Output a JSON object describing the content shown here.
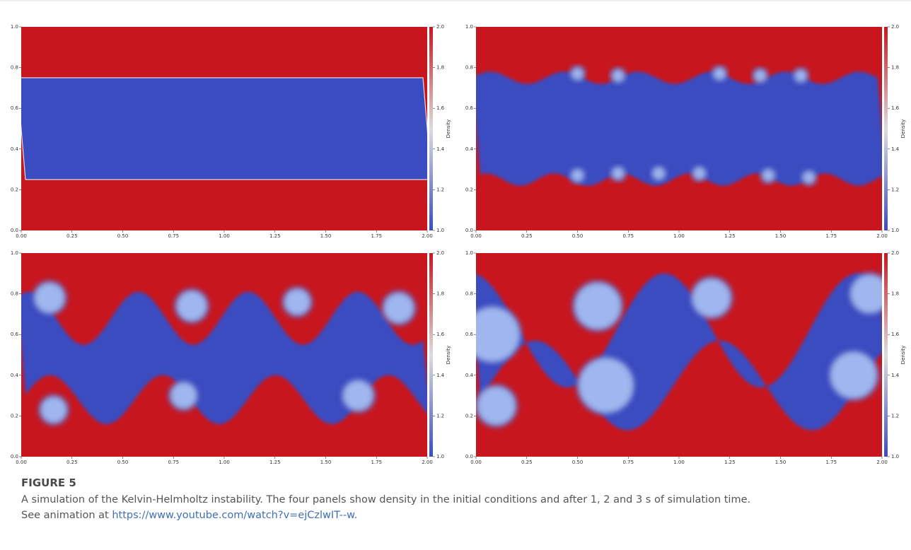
{
  "chart_data": [
    {
      "type": "heatmap",
      "xlim": [
        0,
        2
      ],
      "ylim": [
        0,
        1
      ],
      "xticks": [
        {
          "value": 0,
          "label": "0.00"
        },
        {
          "value": 0.25,
          "label": "0.25"
        },
        {
          "value": 0.5,
          "label": "0.50"
        },
        {
          "value": 0.75,
          "label": "0.75"
        },
        {
          "value": 1,
          "label": "1.00"
        },
        {
          "value": 1.25,
          "label": "1.25"
        },
        {
          "value": 1.5,
          "label": "1.50"
        },
        {
          "value": 1.75,
          "label": "1.75"
        },
        {
          "value": 2,
          "label": "2.00"
        }
      ],
      "yticks": [
        {
          "value": 0,
          "label": "0.0"
        },
        {
          "value": 0.2,
          "label": "0.2"
        },
        {
          "value": 0.4,
          "label": "0.4"
        },
        {
          "value": 0.6,
          "label": "0.6"
        },
        {
          "value": 0.8,
          "label": "0.8"
        },
        {
          "value": 1,
          "label": "1.0"
        }
      ],
      "colorbar": {
        "label": "Density",
        "lim": [
          1,
          2
        ],
        "colors": [
          "#3b4cc0",
          "#dddddd",
          "#c8161e"
        ],
        "ticks": [
          {
            "value": 1,
            "label": "1.0"
          },
          {
            "value": 1.2,
            "label": "1.2"
          },
          {
            "value": 1.4,
            "label": "1.4"
          },
          {
            "value": 1.6,
            "label": "1.6"
          },
          {
            "value": 1.8,
            "label": "1.8"
          },
          {
            "value": 2,
            "label": "2.0"
          }
        ]
      }
    },
    {
      "type": "heatmap",
      "xlim": [
        0,
        2
      ],
      "ylim": [
        0,
        1
      ],
      "xticks": [
        {
          "value": 0,
          "label": "0.00"
        },
        {
          "value": 0.25,
          "label": "0.25"
        },
        {
          "value": 0.5,
          "label": "0.50"
        },
        {
          "value": 0.75,
          "label": "0.75"
        },
        {
          "value": 1,
          "label": "1.00"
        },
        {
          "value": 1.25,
          "label": "1.25"
        },
        {
          "value": 1.5,
          "label": "1.50"
        },
        {
          "value": 1.75,
          "label": "1.75"
        },
        {
          "value": 2,
          "label": "2.00"
        }
      ],
      "yticks": [
        {
          "value": 0,
          "label": "0.0"
        },
        {
          "value": 0.2,
          "label": "0.2"
        },
        {
          "value": 0.4,
          "label": "0.4"
        },
        {
          "value": 0.6,
          "label": "0.6"
        },
        {
          "value": 0.8,
          "label": "0.8"
        },
        {
          "value": 1,
          "label": "1.0"
        }
      ],
      "colorbar": {
        "label": "Density",
        "lim": [
          1,
          2
        ],
        "colors": [
          "#3b4cc0",
          "#dddddd",
          "#c8161e"
        ],
        "ticks": [
          {
            "value": 1,
            "label": "1.0"
          },
          {
            "value": 1.2,
            "label": "1.2"
          },
          {
            "value": 1.4,
            "label": "1.4"
          },
          {
            "value": 1.6,
            "label": "1.6"
          },
          {
            "value": 1.8,
            "label": "1.8"
          },
          {
            "value": 2,
            "label": "2.0"
          }
        ]
      }
    },
    {
      "type": "heatmap",
      "xlim": [
        0,
        2
      ],
      "ylim": [
        0,
        1
      ],
      "xticks": [
        {
          "value": 0,
          "label": "0.00"
        },
        {
          "value": 0.25,
          "label": "0.25"
        },
        {
          "value": 0.5,
          "label": "0.50"
        },
        {
          "value": 0.75,
          "label": "0.75"
        },
        {
          "value": 1,
          "label": "1.00"
        },
        {
          "value": 1.25,
          "label": "1.25"
        },
        {
          "value": 1.5,
          "label": "1.50"
        },
        {
          "value": 1.75,
          "label": "1.75"
        },
        {
          "value": 2,
          "label": "2.00"
        }
      ],
      "yticks": [
        {
          "value": 0,
          "label": "0.0"
        },
        {
          "value": 0.2,
          "label": "0.2"
        },
        {
          "value": 0.4,
          "label": "0.4"
        },
        {
          "value": 0.6,
          "label": "0.6"
        },
        {
          "value": 0.8,
          "label": "0.8"
        },
        {
          "value": 1,
          "label": "1.0"
        }
      ],
      "colorbar": {
        "label": "Density",
        "lim": [
          1,
          2
        ],
        "colors": [
          "#3b4cc0",
          "#dddddd",
          "#c8161e"
        ],
        "ticks": [
          {
            "value": 1,
            "label": "1.0"
          },
          {
            "value": 1.2,
            "label": "1.2"
          },
          {
            "value": 1.4,
            "label": "1.4"
          },
          {
            "value": 1.6,
            "label": "1.6"
          },
          {
            "value": 1.8,
            "label": "1.8"
          },
          {
            "value": 2,
            "label": "2.0"
          }
        ]
      }
    },
    {
      "type": "heatmap",
      "xlim": [
        0,
        2
      ],
      "ylim": [
        0,
        1
      ],
      "xticks": [
        {
          "value": 0,
          "label": "0.00"
        },
        {
          "value": 0.25,
          "label": "0.25"
        },
        {
          "value": 0.5,
          "label": "0.50"
        },
        {
          "value": 0.75,
          "label": "0.75"
        },
        {
          "value": 1,
          "label": "1.00"
        },
        {
          "value": 1.25,
          "label": "1.25"
        },
        {
          "value": 1.5,
          "label": "1.50"
        },
        {
          "value": 1.75,
          "label": "1.75"
        },
        {
          "value": 2,
          "label": "2.00"
        }
      ],
      "yticks": [
        {
          "value": 0,
          "label": "0.0"
        },
        {
          "value": 0.2,
          "label": "0.2"
        },
        {
          "value": 0.4,
          "label": "0.4"
        },
        {
          "value": 0.6,
          "label": "0.6"
        },
        {
          "value": 0.8,
          "label": "0.8"
        },
        {
          "value": 1,
          "label": "1.0"
        }
      ],
      "colorbar": {
        "label": "Density",
        "lim": [
          1,
          2
        ],
        "colors": [
          "#3b4cc0",
          "#dddddd",
          "#c8161e"
        ],
        "ticks": [
          {
            "value": 1,
            "label": "1.0"
          },
          {
            "value": 1.2,
            "label": "1.2"
          },
          {
            "value": 1.4,
            "label": "1.4"
          },
          {
            "value": 1.6,
            "label": "1.6"
          },
          {
            "value": 1.8,
            "label": "1.8"
          },
          {
            "value": 2,
            "label": "2.0"
          }
        ]
      }
    }
  ],
  "caption": {
    "label": "FIGURE 5",
    "text": "A simulation of the Kelvin-Helmholtz instability. The four panels show density in the initial conditions and after 1, 2 and 3 s of simulation time.",
    "link_prefix": "See animation at",
    "link": "https://www.youtube.com/watch?v=ejCzlwIT--w."
  }
}
